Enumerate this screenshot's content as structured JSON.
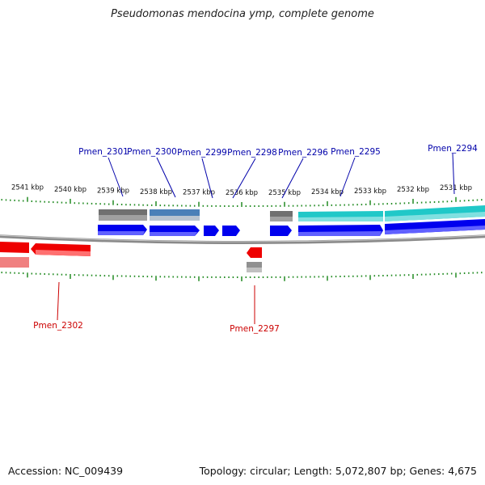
{
  "title": "Pseudomonas mendocina ymp, complete genome",
  "footer": {
    "accession": "Accession: NC_009439",
    "topology": "Topology: circular; Length: 5,072,807 bp; Genes: 4,675"
  },
  "colors": {
    "forward_cds": "#0000ee",
    "reverse_cds": "#ee0000",
    "gene_grey": "#707070",
    "gene_steel": "#4a80b8",
    "gene_cyan": "#20c8c8",
    "tick": "#228b22",
    "backbone": "#8a8a8a",
    "forward_label": "#0000aa",
    "reverse_label": "#cc0000"
  },
  "scale_ticks": [
    "2541 kbp",
    "2540 kbp",
    "2539 kbp",
    "2538 kbp",
    "2537 kbp",
    "2536 kbp",
    "2535 kbp",
    "2534 kbp",
    "2533 kbp",
    "2532 kbp",
    "2531 kbp"
  ],
  "forward_labels": [
    "Pmen_2301",
    "Pmen_2300",
    "Pmen_2299",
    "Pmen_2298",
    "Pmen_2296",
    "Pmen_2295",
    "Pmen_2294"
  ],
  "reverse_labels": [
    "Pmen_2302",
    "Pmen_2297"
  ]
}
